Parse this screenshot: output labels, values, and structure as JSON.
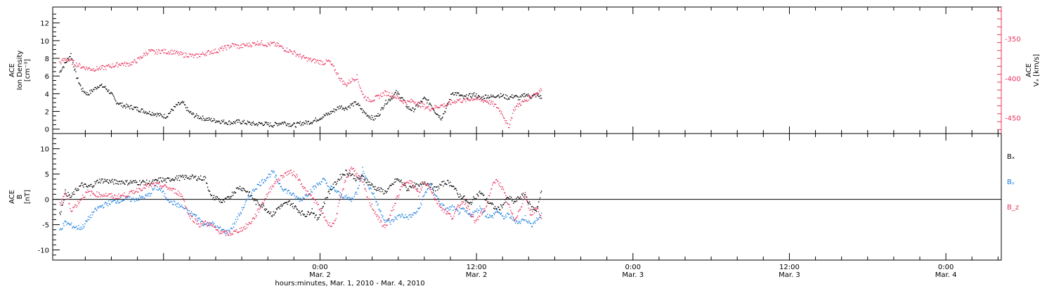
{
  "chart_data": [
    {
      "type": "scatter",
      "panel": "top",
      "left_axis_label": [
        "ACE",
        "Ion Density",
        "[cm⁻³]"
      ],
      "right_axis_label": [
        "ACE",
        "Vₓ [km/s]"
      ],
      "ylim_left": [
        -0.5,
        13.8
      ],
      "yticks_left": [
        "0",
        "2",
        "4",
        "6",
        "8",
        "10",
        "12"
      ],
      "ylim_right": [
        -470,
        -310
      ],
      "yticks_right": [
        "-350",
        "-400",
        "-450"
      ],
      "series": [
        {
          "color": "#000000",
          "axis": "left",
          "x": [
            0,
            0.5,
            1,
            1.5,
            2,
            2.5,
            3,
            3.5,
            4,
            4.5,
            5,
            5.5,
            6,
            6.5,
            7,
            7.5,
            8,
            8.5,
            9,
            9.5,
            10,
            10.5,
            11,
            11.5,
            12,
            12.5,
            13,
            13.5,
            14,
            14.5,
            15,
            15.5,
            16,
            16.5,
            17,
            17.5,
            18,
            18.5,
            19,
            19.5,
            20,
            20.5,
            21,
            21.5,
            22,
            22.5,
            23,
            23.5,
            24,
            24.5,
            25,
            25.5,
            26,
            26.5,
            27,
            27.5,
            28,
            28.5,
            29,
            29.5,
            30,
            30.5,
            31,
            31.5,
            32,
            32.5,
            33,
            33.5,
            34,
            34.5,
            35,
            35.5,
            36,
            36.5,
            37,
            37.5,
            38,
            38.5,
            39,
            39.5,
            40,
            40.5,
            41,
            41.5,
            42,
            42.5,
            43
          ],
          "y": [
            6.5,
            7.5,
            8.5,
            6.0,
            4.5,
            4.0,
            4.5,
            5.0,
            4.8,
            4.2,
            3.2,
            2.8,
            2.6,
            2.5,
            2.3,
            2.1,
            1.9,
            1.8,
            1.6,
            1.5,
            2.2,
            2.8,
            3.0,
            2.0,
            1.6,
            1.4,
            1.2,
            1.1,
            1.0,
            0.9,
            0.8,
            0.8,
            0.9,
            0.8,
            0.7,
            0.6,
            0.7,
            0.6,
            0.5,
            0.7,
            0.8,
            0.6,
            0.5,
            0.7,
            0.8,
            0.9,
            1.2,
            1.5,
            1.8,
            2.2,
            2.6,
            2.4,
            2.8,
            3.0,
            2.1,
            1.6,
            1.2,
            1.8,
            3.0,
            3.5,
            4.2,
            3.6,
            2.5,
            2.2,
            2.8,
            3.5,
            3.0,
            2.0,
            1.3,
            2.5,
            4.2,
            4.0,
            3.6,
            3.8,
            4.0,
            3.5,
            3.8,
            3.7,
            3.9,
            3.8,
            3.6,
            3.8,
            3.5,
            4.0,
            3.7,
            3.9,
            3.6
          ]
        },
        {
          "color": "#e8355f",
          "axis": "right",
          "x": [
            0,
            0.5,
            1,
            1.5,
            2,
            2.5,
            3,
            3.5,
            4,
            4.5,
            5,
            5.5,
            6,
            6.5,
            7,
            7.5,
            8,
            8.5,
            9,
            9.5,
            10,
            10.5,
            11,
            11.5,
            12,
            12.5,
            13,
            13.5,
            14,
            14.5,
            15,
            15.5,
            16,
            16.5,
            17,
            17.5,
            18,
            18.5,
            19,
            19.5,
            20,
            20.5,
            21,
            21.5,
            22,
            22.5,
            23,
            23.5,
            24,
            24.5,
            25,
            25.5,
            26,
            26.5,
            27,
            27.5,
            28,
            28.5,
            29,
            29.5,
            30,
            30.5,
            31,
            31.5,
            32,
            32.5,
            33,
            33.5,
            34,
            34.5,
            35,
            35.5,
            36,
            36.5,
            37,
            37.5,
            38,
            38.5,
            39,
            39.5,
            40,
            40.5,
            41,
            41.5,
            42,
            42.5,
            43
          ],
          "y": [
            -380,
            -375,
            -378,
            -382,
            -385,
            -387,
            -388,
            -387,
            -386,
            -384,
            -383,
            -381,
            -382,
            -380,
            -376,
            -370,
            -365,
            -367,
            -365,
            -366,
            -366,
            -368,
            -370,
            -370,
            -372,
            -370,
            -368,
            -366,
            -365,
            -362,
            -360,
            -357,
            -360,
            -358,
            -357,
            -355,
            -355,
            -357,
            -356,
            -358,
            -362,
            -365,
            -368,
            -372,
            -375,
            -377,
            -378,
            -380,
            -378,
            -388,
            -400,
            -408,
            -402,
            -398,
            -420,
            -427,
            -426,
            -422,
            -418,
            -420,
            -423,
            -428,
            -430,
            -428,
            -432,
            -435,
            -438,
            -436,
            -434,
            -433,
            -430,
            -427,
            -428,
            -426,
            -425,
            -427,
            -428,
            -431,
            -436,
            -445,
            -462,
            -438,
            -432,
            -428,
            -422,
            -418,
            -413
          ]
        }
      ]
    },
    {
      "type": "scatter",
      "panel": "bottom",
      "left_axis_label": [
        "ACE",
        "B",
        "[nT]"
      ],
      "ylim": [
        -12,
        13
      ],
      "yticks": [
        "-10",
        "-5",
        "0",
        "5",
        "10"
      ],
      "legend": [
        "Bₓ",
        "Bᵧ",
        "B_z"
      ],
      "series": [
        {
          "name": "Bₓ",
          "color": "#000000",
          "x": [
            0,
            0.5,
            1,
            1.5,
            2,
            2.5,
            3,
            3.5,
            4,
            4.5,
            5,
            5.5,
            6,
            6.5,
            7,
            7.5,
            8,
            8.5,
            9,
            9.5,
            10,
            10.5,
            11,
            11.5,
            12,
            12.5,
            13,
            13.5,
            14,
            14.5,
            15,
            15.5,
            16,
            16.5,
            17,
            17.5,
            18,
            18.5,
            19,
            19.5,
            20,
            20.5,
            21,
            21.5,
            22,
            22.5,
            23,
            23.5,
            24,
            24.5,
            25,
            25.5,
            26,
            26.5,
            27,
            27.5,
            28,
            28.5,
            29,
            29.5,
            30,
            30.5,
            31,
            31.5,
            32,
            32.5,
            33,
            33.5,
            34,
            34.5,
            35,
            35.5,
            36,
            36.5,
            37,
            37.5,
            38,
            38.5,
            39,
            39.5,
            40,
            40.5,
            41,
            41.5,
            42,
            42.5,
            43
          ],
          "y": [
            -3.0,
            1.5,
            0.5,
            2.0,
            3.0,
            2.5,
            3.0,
            3.8,
            3.8,
            3.6,
            3.5,
            3.6,
            3.4,
            3.5,
            3.4,
            3.5,
            3.3,
            3.6,
            4.0,
            3.8,
            4.2,
            4.3,
            4.4,
            4.5,
            4.4,
            4.3,
            4.2,
            0.5,
            0.4,
            -0.5,
            0.2,
            1.5,
            2.5,
            2.0,
            1.0,
            -0.5,
            -1.0,
            -2.0,
            -3.0,
            -1.5,
            -1.0,
            -0.5,
            -1.5,
            -2.5,
            -3.0,
            -2.0,
            -4.0,
            -1.0,
            1.5,
            3.0,
            4.5,
            5.5,
            5.0,
            4.0,
            4.5,
            3.5,
            2.5,
            2.0,
            1.5,
            2.5,
            4.0,
            3.5,
            2.0,
            3.0,
            2.5,
            3.5,
            3.0,
            2.0,
            3.0,
            3.5,
            3.0,
            1.0,
            0.5,
            -1.0,
            0.5,
            1.5,
            0.0,
            -1.0,
            -2.0,
            -1.0,
            0.5,
            -0.5,
            0.5,
            1.0,
            -1.5,
            -2.0,
            2.0
          ]
        },
        {
          "name": "Bᵧ",
          "color": "#1a7fe0",
          "x": [
            0,
            0.5,
            1,
            1.5,
            2,
            2.5,
            3,
            3.5,
            4,
            4.5,
            5,
            5.5,
            6,
            6.5,
            7,
            7.5,
            8,
            8.5,
            9,
            9.5,
            10,
            10.5,
            11,
            11.5,
            12,
            12.5,
            13,
            13.5,
            14,
            14.5,
            15,
            15.5,
            16,
            16.5,
            17,
            17.5,
            18,
            18.5,
            19,
            19.5,
            20,
            20.5,
            21,
            21.5,
            22,
            22.5,
            23,
            23.5,
            24,
            24.5,
            25,
            25.5,
            26,
            26.5,
            27,
            27.5,
            28,
            28.5,
            29,
            29.5,
            30,
            30.5,
            31,
            31.5,
            32,
            32.5,
            33,
            33.5,
            34,
            34.5,
            35,
            35.5,
            36,
            36.5,
            37,
            37.5,
            38,
            38.5,
            39,
            39.5,
            40,
            40.5,
            41,
            41.5,
            42,
            42.5,
            43
          ],
          "y": [
            -6.0,
            -4.5,
            -5.0,
            -5.5,
            -5.5,
            -4.0,
            -2.5,
            -1.5,
            -1.0,
            -0.5,
            -0.3,
            0.0,
            0.2,
            0.0,
            0.3,
            0.5,
            1.0,
            2.5,
            2.0,
            0.5,
            -0.5,
            -1.0,
            -1.5,
            -2.5,
            -3.0,
            -4.0,
            -5.0,
            -4.5,
            -5.5,
            -6.0,
            -6.5,
            -5.0,
            -3.0,
            -1.0,
            1.0,
            2.5,
            3.5,
            4.5,
            5.5,
            3.5,
            2.0,
            1.5,
            0.5,
            0.0,
            1.0,
            2.0,
            3.0,
            4.0,
            2.5,
            2.0,
            1.0,
            0.5,
            0.0,
            1.5,
            6.0,
            3.0,
            1.0,
            -2.0,
            -4.0,
            -4.5,
            -3.5,
            -3.0,
            -3.5,
            -3.0,
            -2.0,
            1.0,
            3.0,
            1.0,
            -1.0,
            -2.0,
            -1.5,
            -2.5,
            -2.0,
            -3.0,
            -2.5,
            -1.5,
            -3.0,
            -3.5,
            -2.0,
            -3.5,
            -3.0,
            -4.0,
            -4.5,
            -3.5,
            -5.0,
            -4.0,
            -3.0
          ]
        },
        {
          "name": "B_z",
          "color": "#e8355f",
          "x": [
            0,
            0.5,
            1,
            1.5,
            2,
            2.5,
            3,
            3.5,
            4,
            4.5,
            5,
            5.5,
            6,
            6.5,
            7,
            7.5,
            8,
            8.5,
            9,
            9.5,
            10,
            10.5,
            11,
            11.5,
            12,
            12.5,
            13,
            13.5,
            14,
            14.5,
            15,
            15.5,
            16,
            16.5,
            17,
            17.5,
            18,
            18.5,
            19,
            19.5,
            20,
            20.5,
            21,
            21.5,
            22,
            22.5,
            23,
            23.5,
            24,
            24.5,
            25,
            25.5,
            26,
            26.5,
            27,
            27.5,
            28,
            28.5,
            29,
            29.5,
            30,
            30.5,
            31,
            31.5,
            32,
            32.5,
            33,
            33.5,
            34,
            34.5,
            35,
            35.5,
            36,
            36.5,
            37,
            37.5,
            38,
            38.5,
            39,
            39.5,
            40,
            40.5,
            41,
            41.5,
            42,
            42.5,
            43
          ],
          "y": [
            -1.0,
            1.5,
            -2.0,
            -1.0,
            0.5,
            1.5,
            1.2,
            1.0,
            1.0,
            0.8,
            0.6,
            0.8,
            1.0,
            1.5,
            2.0,
            2.5,
            2.8,
            3.0,
            2.8,
            2.5,
            2.0,
            1.5,
            0.5,
            -3.0,
            -4.0,
            -5.0,
            -4.5,
            -5.0,
            -6.0,
            -6.5,
            -6.8,
            -6.5,
            -6.0,
            -5.5,
            -4.5,
            -3.0,
            -1.0,
            1.0,
            3.0,
            4.0,
            5.0,
            5.5,
            5.0,
            3.5,
            1.5,
            0.5,
            -1.0,
            -3.0,
            -5.0,
            -4.5,
            0.0,
            4.0,
            6.5,
            5.0,
            3.5,
            0.0,
            -2.0,
            -4.0,
            -5.5,
            -3.0,
            0.0,
            2.5,
            4.0,
            3.0,
            1.0,
            3.5,
            2.5,
            0.0,
            -1.5,
            -2.5,
            -3.5,
            -1.5,
            0.0,
            -2.0,
            -4.5,
            -3.0,
            -1.5,
            2.5,
            4.0,
            2.0,
            -1.0,
            -4.0,
            -2.0,
            1.0,
            -3.0,
            -1.5,
            -4.0
          ]
        }
      ]
    }
  ],
  "x_axis": {
    "ticks": [
      {
        "time": "0:00",
        "date": "Mar. 2"
      },
      {
        "time": "12:00",
        "date": "Mar. 2"
      },
      {
        "time": "0:00",
        "date": "Mar. 3"
      },
      {
        "time": "12:00",
        "date": "Mar. 3"
      },
      {
        "time": "0:00",
        "date": "Mar. 4"
      }
    ],
    "label": "hours:minutes, Mar. 1, 2010 - Mar. 4, 2010"
  }
}
